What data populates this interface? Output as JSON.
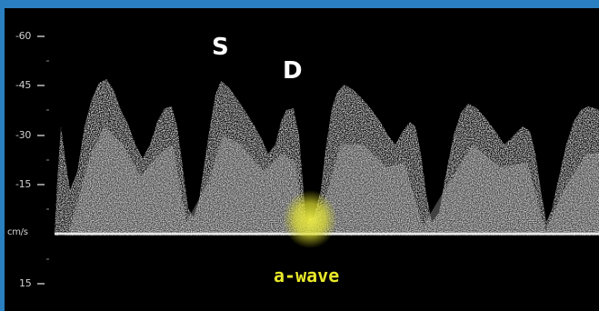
{
  "scale": {
    "ticks": [
      {
        "label": "-60",
        "value": -60
      },
      {
        "label": "-45",
        "value": -45
      },
      {
        "label": "-30",
        "value": -30
      },
      {
        "label": "-15",
        "value": -15
      },
      {
        "label": "cm/s",
        "value": 0
      },
      {
        "label": "15",
        "value": 15
      }
    ]
  },
  "annotations": {
    "s_label": "S",
    "d_label": "D",
    "a_wave_label": "a-wave"
  },
  "colors": {
    "frame": "#2a7fc0",
    "background": "#000000",
    "spectrum": "#d8d8d8",
    "highlight": "#e8e82a"
  }
}
